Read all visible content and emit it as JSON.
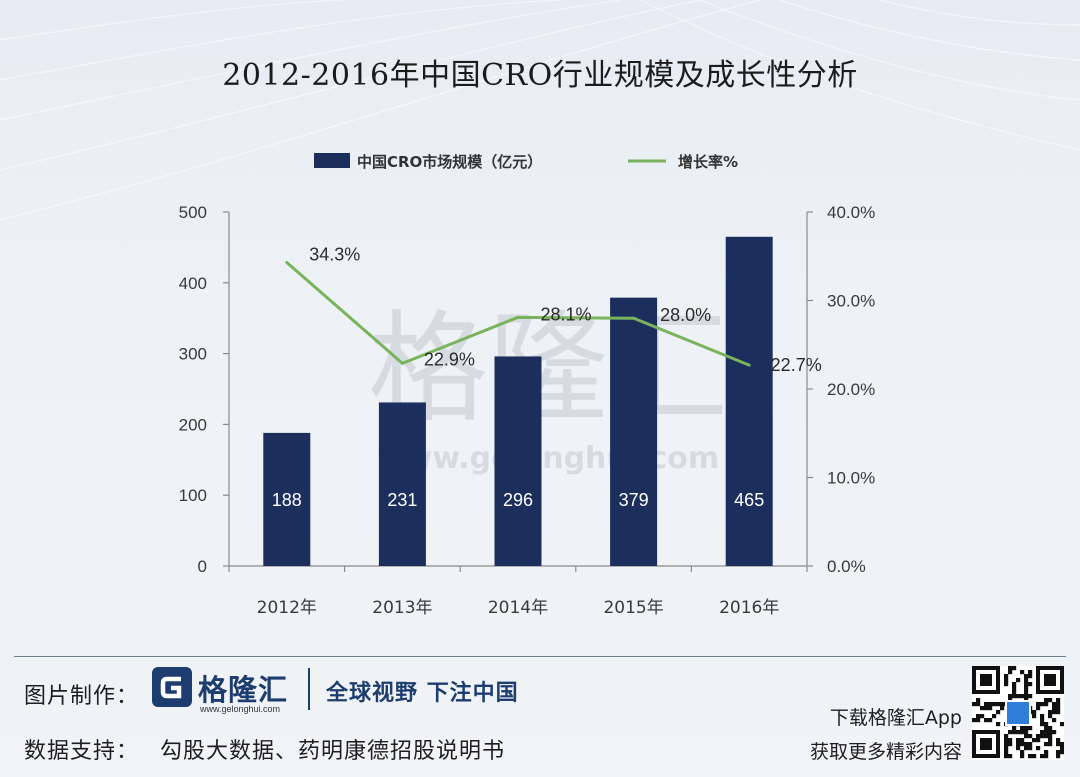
{
  "title": "2012-2016年中国CRO行业规模及成长性分析",
  "chart_data": {
    "type": "bar+line",
    "categories": [
      "2012年",
      "2013年",
      "2014年",
      "2015年",
      "2016年"
    ],
    "series": [
      {
        "name": "中国CRO市场规模（亿元）",
        "type": "bar",
        "axis": "left",
        "values": [
          188,
          231,
          296,
          379,
          465
        ],
        "labels": [
          "188",
          "231",
          "296",
          "379",
          "465"
        ]
      },
      {
        "name": "增长率%",
        "type": "line",
        "axis": "right",
        "values": [
          34.3,
          22.9,
          28.1,
          28.0,
          22.7
        ],
        "labels": [
          "34.3%",
          "22.9%",
          "28.1%",
          "28.0%",
          "22.7%"
        ]
      }
    ],
    "y_left": {
      "min": 0,
      "max": 500,
      "ticks": [
        "0",
        "100",
        "200",
        "300",
        "400",
        "500"
      ]
    },
    "y_right": {
      "min": 0,
      "max": 40,
      "ticks": [
        "0.0%",
        "10.0%",
        "20.0%",
        "30.0%",
        "40.0%"
      ]
    },
    "legend_position": "top"
  },
  "colors": {
    "bar": "#1b2e5c",
    "line": "#79b35c",
    "axis": "#8a8a8a",
    "text": "#3a3a3a",
    "brand": "#1d3d70"
  },
  "watermark": {
    "text": "格隆汇",
    "url": "www.gelonghui.com"
  },
  "footer": {
    "made_by_label": "图片制作：",
    "logo_text": "格隆汇",
    "logo_url": "www.gelonghui.com",
    "slogan": "全球视野 下注中国",
    "source_label": "数据支持：",
    "source_text": "勾股大数据、药明康德招股说明书",
    "app_line1": "下载格隆汇App",
    "app_line2": "获取更多精彩内容"
  }
}
